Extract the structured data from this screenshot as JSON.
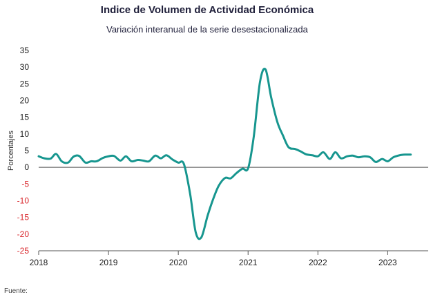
{
  "chart_data": {
    "type": "line",
    "title": "Indice de Volumen de  Actividad Económica",
    "subtitle": "Variación interanual de la serie desestacionalizada",
    "ylabel": "Porcentajes",
    "xlabel": "",
    "ylim": [
      -25,
      35
    ],
    "yticks": [
      35,
      30,
      25,
      20,
      15,
      10,
      5,
      0,
      -5,
      -10,
      -15,
      -20,
      -25
    ],
    "xticks": [
      "2018",
      "2019",
      "2020",
      "2021",
      "2022",
      "2023"
    ],
    "xlim": [
      2018.0,
      2023.58
    ],
    "grid": false,
    "colors": {
      "line": "#17968f",
      "negative_ticks": "#d9262b",
      "positive_ticks": "#1a1a1a"
    },
    "series": [
      {
        "name": "",
        "x": [
          2018.0,
          2018.08,
          2018.17,
          2018.25,
          2018.33,
          2018.42,
          2018.5,
          2018.58,
          2018.67,
          2018.75,
          2018.83,
          2018.92,
          2019.0,
          2019.08,
          2019.17,
          2019.25,
          2019.33,
          2019.42,
          2019.5,
          2019.58,
          2019.67,
          2019.75,
          2019.83,
          2019.92,
          2020.0,
          2020.08,
          2020.17,
          2020.25,
          2020.33,
          2020.42,
          2020.5,
          2020.58,
          2020.67,
          2020.75,
          2020.83,
          2020.92,
          2021.0,
          2021.08,
          2021.17,
          2021.25,
          2021.33,
          2021.42,
          2021.5,
          2021.58,
          2021.67,
          2021.75,
          2021.83,
          2021.92,
          2022.0,
          2022.08,
          2022.17,
          2022.25,
          2022.33,
          2022.42,
          2022.5,
          2022.58,
          2022.67,
          2022.75,
          2022.83,
          2022.92,
          2023.0,
          2023.08,
          2023.17,
          2023.25,
          2023.33
        ],
        "values": [
          3.3,
          2.7,
          2.6,
          4.0,
          1.8,
          1.4,
          3.2,
          3.4,
          1.4,
          1.8,
          1.8,
          2.8,
          3.3,
          3.4,
          2.0,
          3.3,
          1.8,
          2.2,
          2.0,
          1.8,
          3.5,
          2.7,
          3.6,
          2.3,
          1.4,
          1.0,
          -8.0,
          -19.5,
          -21.0,
          -14.5,
          -9.5,
          -5.5,
          -3.2,
          -3.3,
          -1.8,
          -0.4,
          -0.3,
          9.0,
          25.5,
          29.3,
          21.0,
          13.5,
          9.5,
          6.0,
          5.5,
          4.8,
          3.9,
          3.6,
          3.3,
          4.5,
          2.5,
          4.5,
          2.7,
          3.3,
          3.5,
          3.0,
          3.3,
          3.0,
          1.6,
          2.5,
          1.8,
          3.0,
          3.6,
          3.8,
          3.8
        ]
      }
    ]
  },
  "footnote": "Fuente:"
}
